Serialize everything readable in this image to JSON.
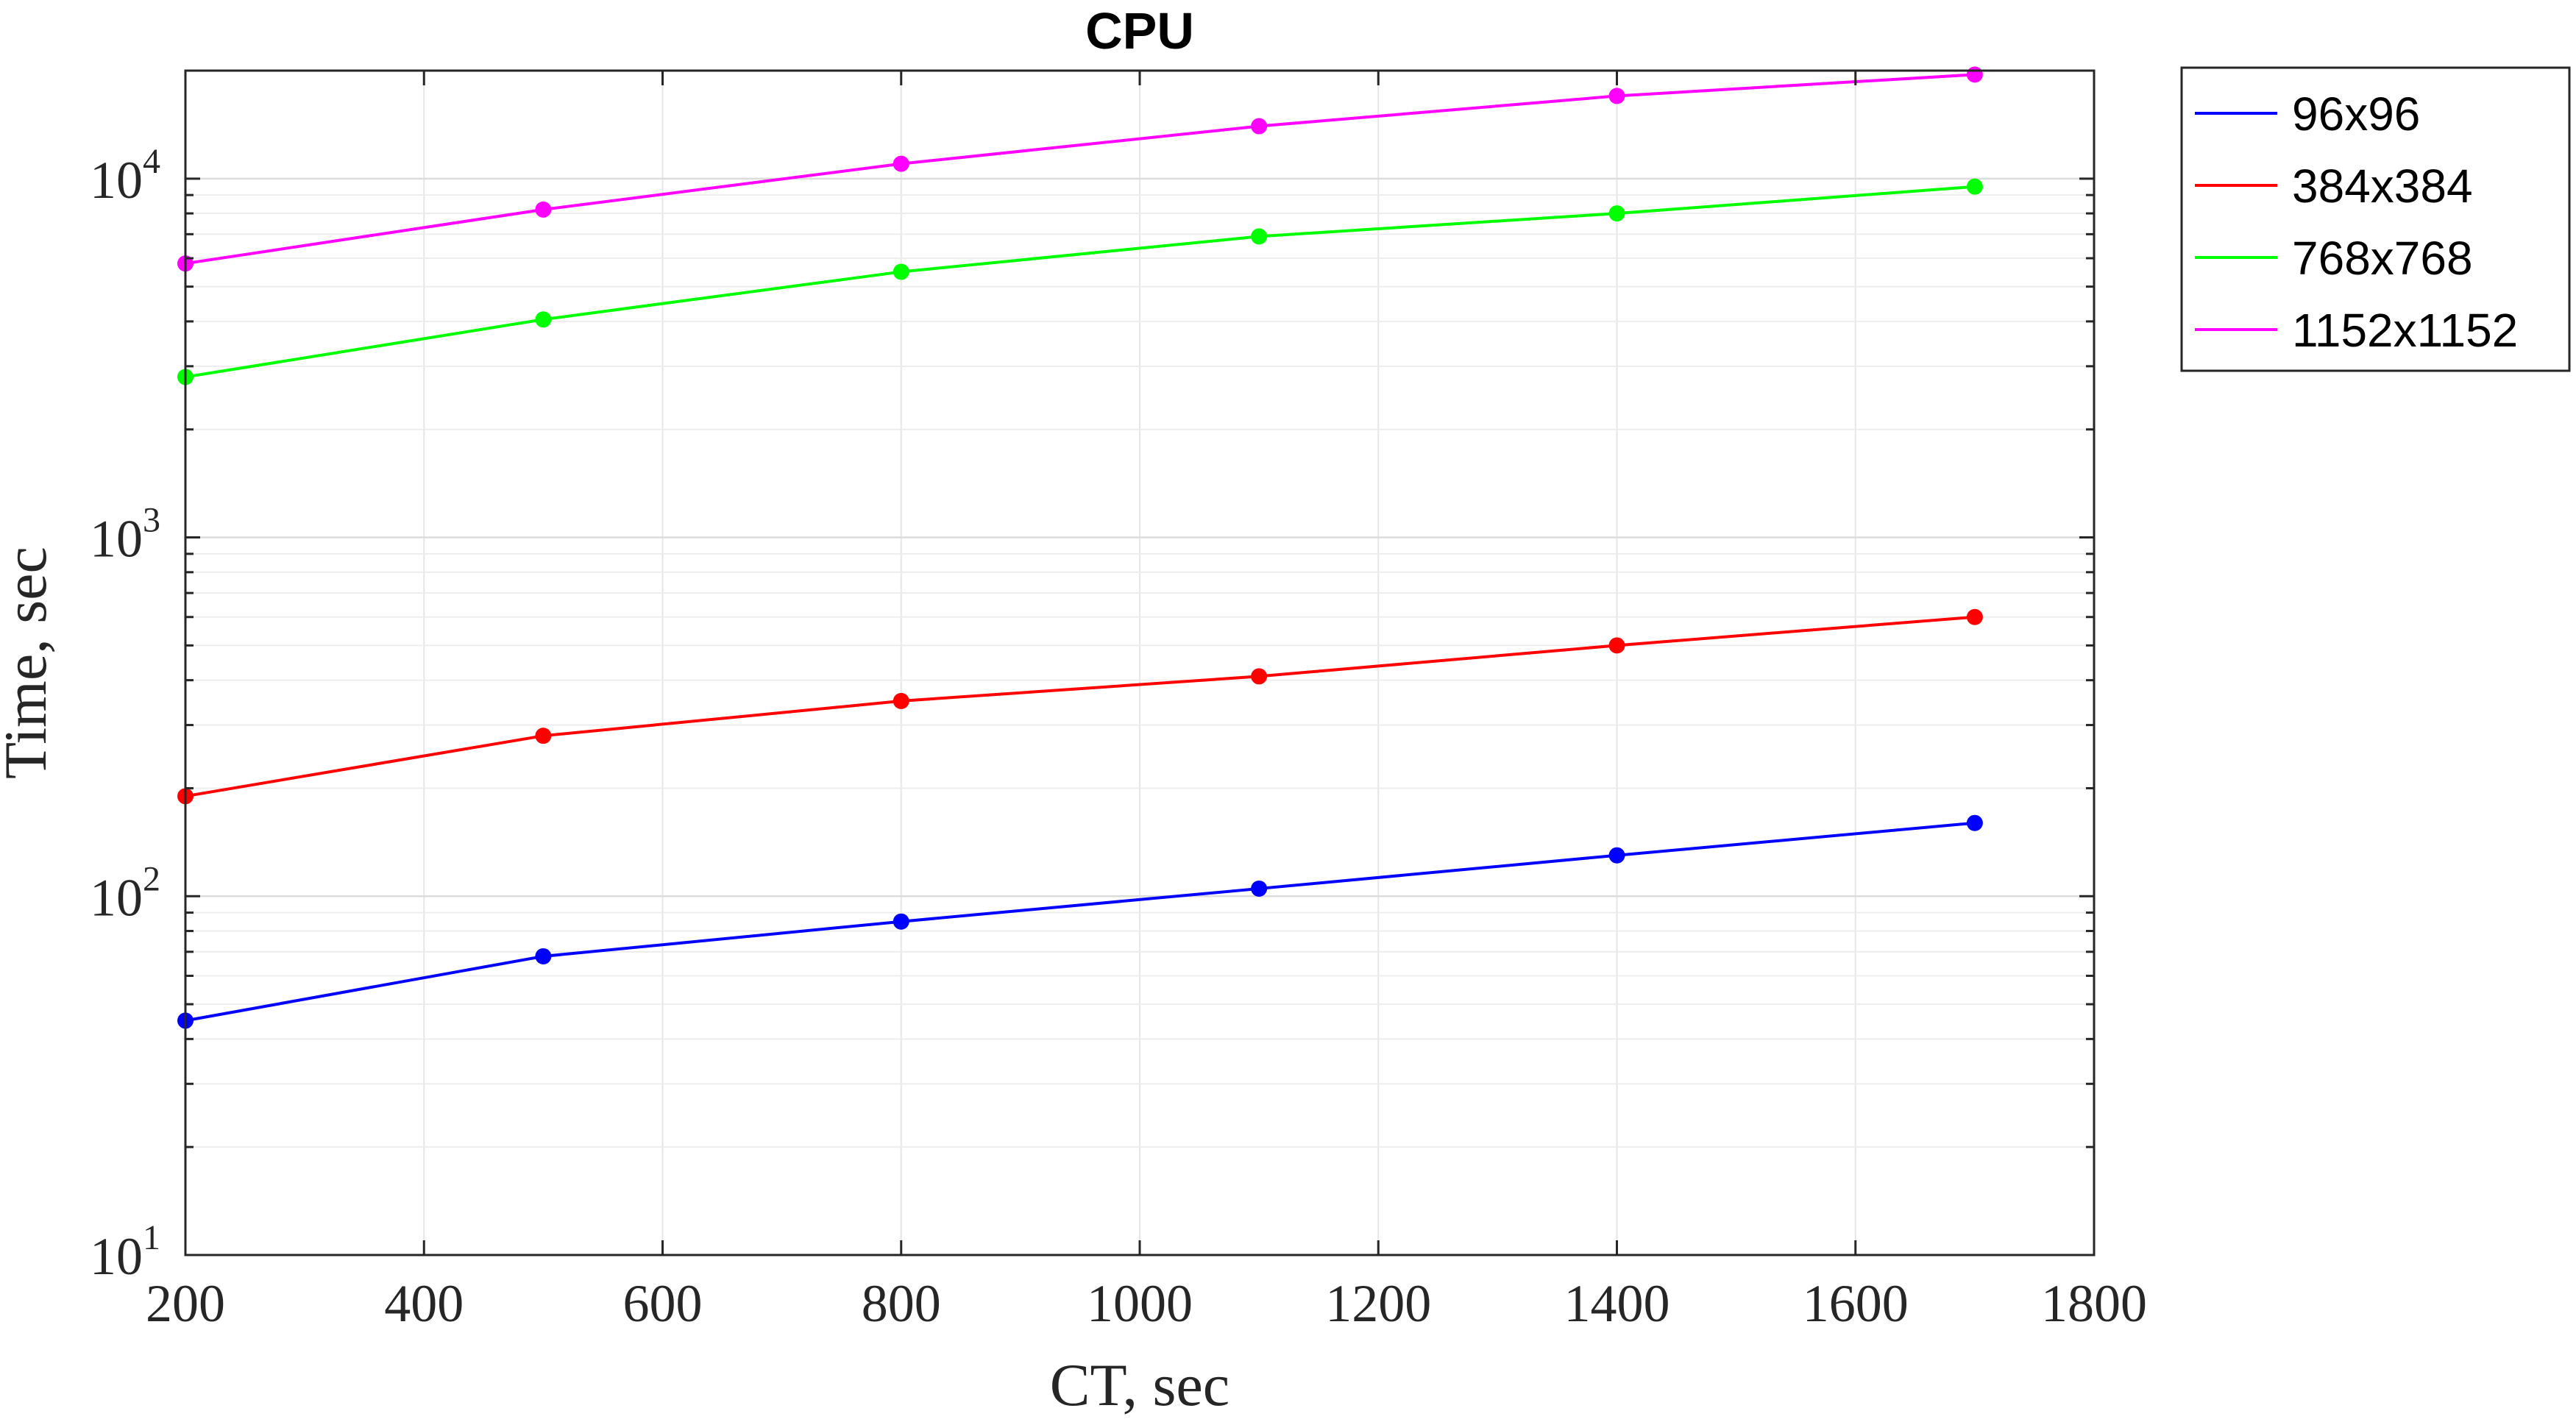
{
  "chart_data": {
    "type": "line",
    "title": "CPU",
    "xlabel": "CT, sec",
    "ylabel": "Time, sec",
    "xlim": [
      200,
      1800
    ],
    "ylim": [
      10,
      20000
    ],
    "yscale": "log",
    "grid": true,
    "legend_position": "outside-top-right",
    "x_ticks": [
      "200",
      "400",
      "600",
      "800",
      "1000",
      "1200",
      "1400",
      "1600",
      "1800"
    ],
    "y_ticks": [
      {
        "base": "10",
        "exp": "1"
      },
      {
        "base": "10",
        "exp": "2"
      },
      {
        "base": "10",
        "exp": "3"
      },
      {
        "base": "10",
        "exp": "4"
      }
    ],
    "x": [
      200,
      500,
      800,
      1100,
      1400,
      1700
    ],
    "series": [
      {
        "name": "96x96",
        "color": "#0000ff",
        "values": [
          45,
          68,
          85,
          105,
          130,
          160
        ]
      },
      {
        "name": "384x384",
        "color": "#ff0000",
        "values": [
          190,
          280,
          350,
          410,
          500,
          600
        ]
      },
      {
        "name": "768x768",
        "color": "#00ff00",
        "values": [
          2800,
          4050,
          5500,
          6900,
          8000,
          9500
        ]
      },
      {
        "name": "1152x1152",
        "color": "#ff00ff",
        "values": [
          5800,
          8200,
          11000,
          14000,
          17000,
          19500
        ]
      }
    ]
  }
}
